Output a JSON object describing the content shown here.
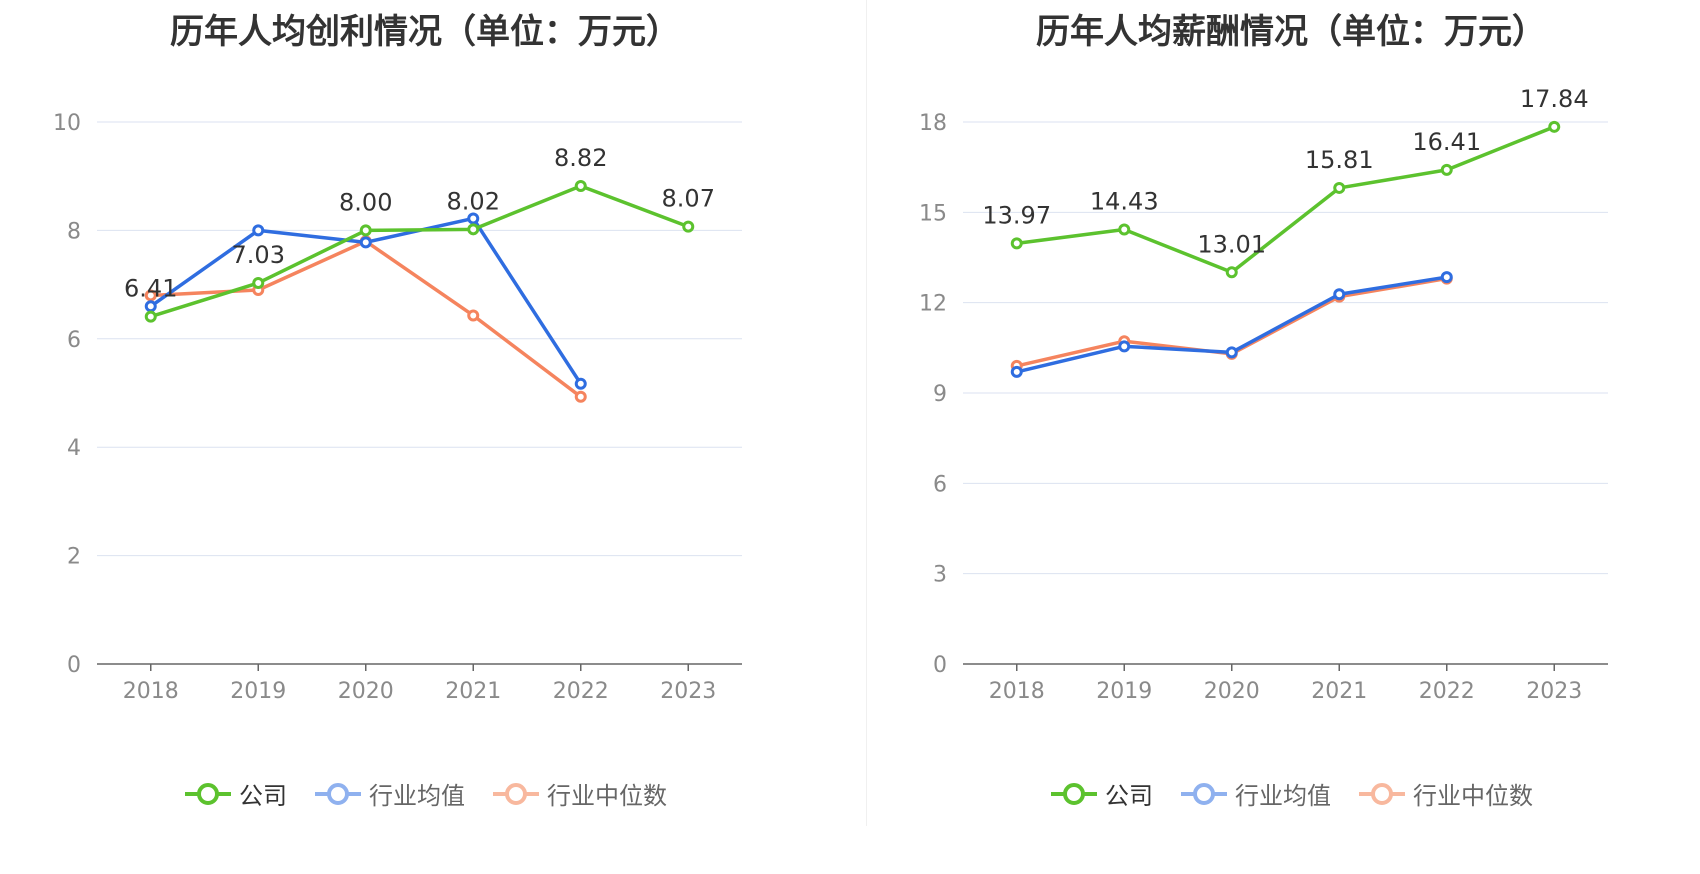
{
  "legend": {
    "company": "公司",
    "industry_avg": "行业均值",
    "industry_median": "行业中位数"
  },
  "colors": {
    "company": "#5cc22e",
    "industry_avg": "#2f6de0",
    "industry_median": "#f5845e",
    "legend_avg": "#8fb1ef",
    "legend_median": "#f8b89e",
    "grid": "#dbe2f0",
    "axis": "#666666"
  },
  "chart_data": [
    {
      "type": "line",
      "title": "历年人均创利情况（单位：万元）",
      "categories": [
        "2018",
        "2019",
        "2020",
        "2021",
        "2022",
        "2023"
      ],
      "yticks": [
        "0",
        "2",
        "4",
        "6",
        "8",
        "10"
      ],
      "ylim": [
        0,
        10
      ],
      "grid": true,
      "legend_position": "bottom",
      "series": [
        {
          "key": "company",
          "name": "公司",
          "values": [
            6.41,
            7.03,
            8.0,
            8.02,
            8.82,
            8.07
          ],
          "labels": [
            "6.41",
            "7.03",
            "8.00",
            "8.02",
            "8.82",
            "8.07"
          ]
        },
        {
          "key": "industry_avg",
          "name": "行业均值",
          "values": [
            6.6,
            8.0,
            7.78,
            8.22,
            5.17,
            null
          ]
        },
        {
          "key": "industry_median",
          "name": "行业中位数",
          "values": [
            6.8,
            6.9,
            7.8,
            6.43,
            4.93,
            null
          ]
        }
      ]
    },
    {
      "type": "line",
      "title": "历年人均薪酬情况（单位：万元）",
      "categories": [
        "2018",
        "2019",
        "2020",
        "2021",
        "2022",
        "2023"
      ],
      "yticks": [
        "0",
        "3",
        "6",
        "9",
        "12",
        "15",
        "18"
      ],
      "ylim": [
        0,
        18
      ],
      "grid": true,
      "legend_position": "bottom",
      "series": [
        {
          "key": "company",
          "name": "公司",
          "values": [
            13.97,
            14.43,
            13.01,
            15.81,
            16.41,
            17.84
          ],
          "labels": [
            "13.97",
            "14.43",
            "13.01",
            "15.81",
            "16.41",
            "17.84"
          ]
        },
        {
          "key": "industry_avg",
          "name": "行业均值",
          "values": [
            9.7,
            10.55,
            10.35,
            12.28,
            12.85,
            null
          ]
        },
        {
          "key": "industry_median",
          "name": "行业中位数",
          "values": [
            9.9,
            10.72,
            10.3,
            12.2,
            12.8,
            null
          ]
        }
      ]
    }
  ]
}
